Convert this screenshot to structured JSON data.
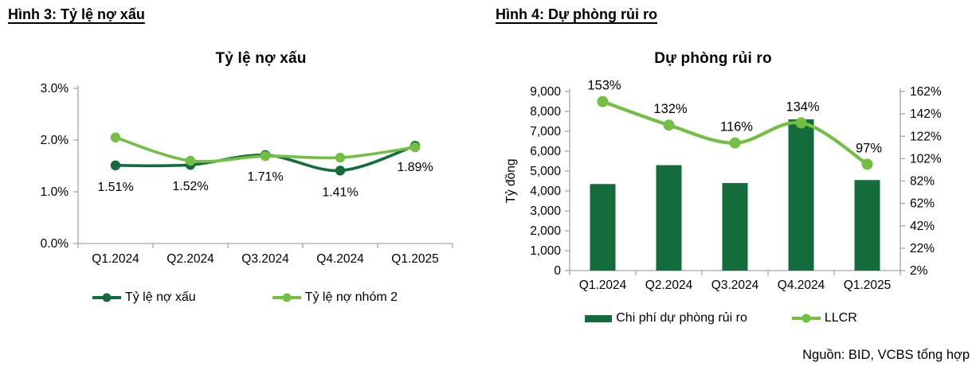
{
  "page": {
    "figure3_heading": "Hình 3: Tỷ lệ nợ xấu",
    "figure4_heading": "Hình 4: Dự phòng rủi ro",
    "source": "Nguồn: BID, VCBS tổng hợp"
  },
  "colors": {
    "dark_green": "#146C3C",
    "light_green": "#72BF44",
    "axis_line": "#A6A6A6",
    "text": "#000000",
    "background": "#FFFFFF"
  },
  "chart_data": [
    {
      "type": "line",
      "title": "Tỷ lệ nợ xấu",
      "categories": [
        "Q1.2024",
        "Q2.2024",
        "Q3.2024",
        "Q4.2024",
        "Q1.2025"
      ],
      "series": [
        {
          "name": "Tỷ lệ nợ xấu",
          "color": "#146C3C",
          "values": [
            1.51,
            1.52,
            1.71,
            1.41,
            1.89
          ],
          "data_labels": [
            "1.51%",
            "1.52%",
            "1.71%",
            "1.41%",
            "1.89%"
          ]
        },
        {
          "name": "Tỷ lệ nợ nhóm 2",
          "color": "#72BF44",
          "values": [
            2.05,
            1.6,
            1.69,
            1.66,
            1.86
          ],
          "data_labels": []
        }
      ],
      "ylim": [
        0,
        3
      ],
      "yticks": [
        "0.0%",
        "1.0%",
        "2.0%",
        "3.0%"
      ],
      "grid": false,
      "legend_position": "bottom"
    },
    {
      "type": "bar+line",
      "title": "Dự phòng rủi ro",
      "categories": [
        "Q1.2024",
        "Q2.2024",
        "Q3.2024",
        "Q4.2024",
        "Q1.2025"
      ],
      "bar_series": {
        "name": "Chi phí dự phòng rủi ro",
        "color": "#146C3C",
        "axis": "left",
        "values": [
          4350,
          5300,
          4400,
          7600,
          4550
        ]
      },
      "line_series": {
        "name": "LLCR",
        "color": "#72BF44",
        "axis": "right",
        "values": [
          153,
          132,
          116,
          134,
          97
        ],
        "data_labels": [
          "153%",
          "132%",
          "116%",
          "134%",
          "97%"
        ]
      },
      "ylabel_left": "Tỷ đồng",
      "y_left": {
        "min": 0,
        "max": 9000,
        "step": 1000
      },
      "y_right": {
        "min": 2,
        "max": 162,
        "step": 20,
        "suffix": "%"
      },
      "grid": false,
      "legend_position": "bottom"
    }
  ]
}
